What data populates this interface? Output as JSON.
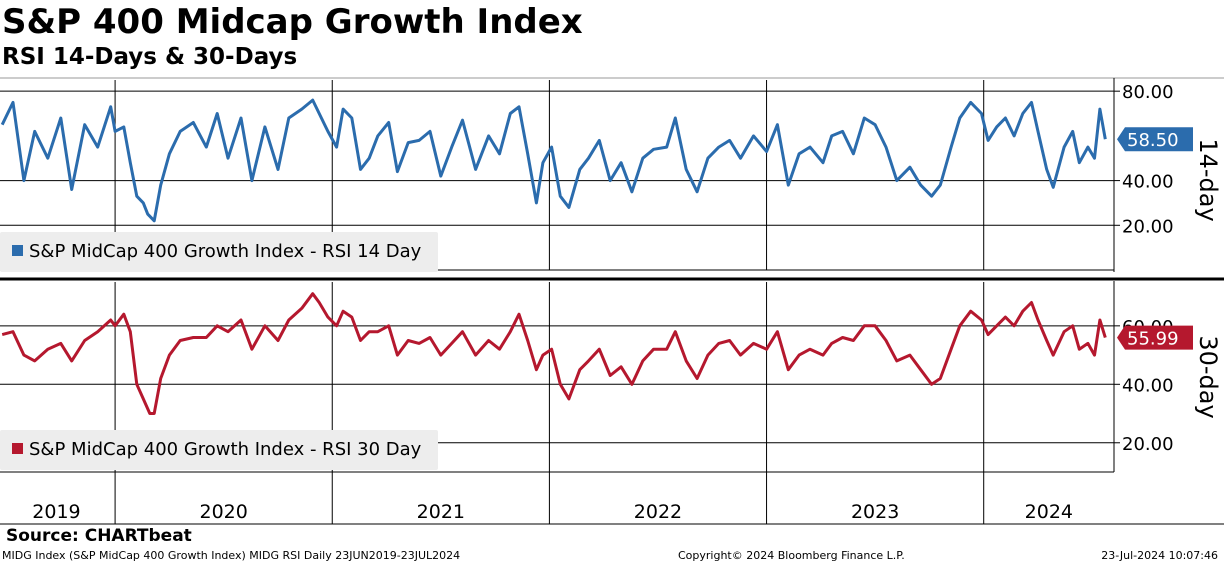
{
  "header": {
    "title": "S&P 400 Midcap Growth Index",
    "subtitle": "RSI 14-Days & 30-Days"
  },
  "footer": {
    "source": "Source: CHARTbeat",
    "left": "MIDG Index (S&P MidCap 400 Growth Index) MIDG RSI  Daily 23JUN2019-23JUL2024",
    "middle": "Copyright© 2024 Bloomberg Finance L.P.",
    "right": "23-Jul-2024 10:07:46"
  },
  "colors": {
    "rsi14": "#2b6cad",
    "rsi30": "#b5182e",
    "grid": "#000000"
  },
  "chart_data": [
    {
      "type": "line",
      "panel": "top",
      "axis_title": "14-day",
      "series": [
        {
          "name": "S&P MidCap 400 Growth Index - RSI 14 Day",
          "last_value": 58.5,
          "last_label": "58.50",
          "points": [
            [
              2019.48,
              65
            ],
            [
              2019.53,
              75
            ],
            [
              2019.58,
              40
            ],
            [
              2019.63,
              62
            ],
            [
              2019.69,
              50
            ],
            [
              2019.75,
              68
            ],
            [
              2019.8,
              36
            ],
            [
              2019.86,
              65
            ],
            [
              2019.92,
              55
            ],
            [
              2019.98,
              73
            ],
            [
              2020.0,
              62
            ],
            [
              2020.04,
              64
            ],
            [
              2020.07,
              48
            ],
            [
              2020.1,
              33
            ],
            [
              2020.13,
              30
            ],
            [
              2020.15,
              25
            ],
            [
              2020.18,
              22
            ],
            [
              2020.21,
              38
            ],
            [
              2020.25,
              52
            ],
            [
              2020.3,
              62
            ],
            [
              2020.36,
              66
            ],
            [
              2020.42,
              55
            ],
            [
              2020.47,
              70
            ],
            [
              2020.52,
              50
            ],
            [
              2020.58,
              68
            ],
            [
              2020.63,
              40
            ],
            [
              2020.69,
              64
            ],
            [
              2020.75,
              45
            ],
            [
              2020.8,
              68
            ],
            [
              2020.86,
              72
            ],
            [
              2020.91,
              76
            ],
            [
              2020.94,
              70
            ],
            [
              2020.98,
              62
            ],
            [
              2021.02,
              55
            ],
            [
              2021.05,
              72
            ],
            [
              2021.09,
              68
            ],
            [
              2021.13,
              45
            ],
            [
              2021.17,
              50
            ],
            [
              2021.21,
              60
            ],
            [
              2021.26,
              66
            ],
            [
              2021.3,
              44
            ],
            [
              2021.35,
              57
            ],
            [
              2021.4,
              58
            ],
            [
              2021.45,
              62
            ],
            [
              2021.5,
              42
            ],
            [
              2021.55,
              55
            ],
            [
              2021.6,
              67
            ],
            [
              2021.66,
              45
            ],
            [
              2021.72,
              60
            ],
            [
              2021.77,
              52
            ],
            [
              2021.82,
              70
            ],
            [
              2021.86,
              73
            ],
            [
              2021.9,
              52
            ],
            [
              2021.94,
              30
            ],
            [
              2021.97,
              48
            ],
            [
              2022.01,
              55
            ],
            [
              2022.05,
              33
            ],
            [
              2022.09,
              28
            ],
            [
              2022.14,
              45
            ],
            [
              2022.18,
              50
            ],
            [
              2022.23,
              58
            ],
            [
              2022.28,
              40
            ],
            [
              2022.33,
              48
            ],
            [
              2022.38,
              35
            ],
            [
              2022.43,
              50
            ],
            [
              2022.48,
              54
            ],
            [
              2022.54,
              55
            ],
            [
              2022.58,
              68
            ],
            [
              2022.63,
              45
            ],
            [
              2022.68,
              35
            ],
            [
              2022.73,
              50
            ],
            [
              2022.78,
              55
            ],
            [
              2022.83,
              58
            ],
            [
              2022.88,
              50
            ],
            [
              2022.94,
              60
            ],
            [
              2023.0,
              53
            ],
            [
              2023.05,
              65
            ],
            [
              2023.1,
              38
            ],
            [
              2023.15,
              52
            ],
            [
              2023.2,
              55
            ],
            [
              2023.26,
              48
            ],
            [
              2023.3,
              60
            ],
            [
              2023.35,
              62
            ],
            [
              2023.4,
              52
            ],
            [
              2023.45,
              68
            ],
            [
              2023.5,
              65
            ],
            [
              2023.55,
              55
            ],
            [
              2023.6,
              40
            ],
            [
              2023.66,
              46
            ],
            [
              2023.71,
              38
            ],
            [
              2023.76,
              33
            ],
            [
              2023.8,
              38
            ],
            [
              2023.85,
              55
            ],
            [
              2023.89,
              68
            ],
            [
              2023.94,
              75
            ],
            [
              2023.99,
              70
            ],
            [
              2024.02,
              58
            ],
            [
              2024.06,
              64
            ],
            [
              2024.1,
              68
            ],
            [
              2024.14,
              60
            ],
            [
              2024.18,
              70
            ],
            [
              2024.22,
              75
            ],
            [
              2024.25,
              62
            ],
            [
              2024.29,
              45
            ],
            [
              2024.32,
              37
            ],
            [
              2024.37,
              55
            ],
            [
              2024.41,
              62
            ],
            [
              2024.44,
              48
            ],
            [
              2024.48,
              55
            ],
            [
              2024.51,
              50
            ],
            [
              2024.535,
              72
            ],
            [
              2024.56,
              58.5
            ]
          ]
        }
      ],
      "y_ticks": [
        {
          "value": 20,
          "label": "20.00"
        },
        {
          "value": 40,
          "label": "40.00"
        },
        {
          "value": 80,
          "label": "80.00"
        }
      ],
      "ylim": [
        0,
        85
      ],
      "legend": "top-left"
    },
    {
      "type": "line",
      "panel": "bottom",
      "axis_title": "30-day",
      "series": [
        {
          "name": "S&P MidCap 400 Growth Index - RSI 30 Day",
          "last_value": 55.99,
          "last_label": "55.99",
          "points": [
            [
              2019.48,
              57
            ],
            [
              2019.53,
              58
            ],
            [
              2019.58,
              50
            ],
            [
              2019.63,
              48
            ],
            [
              2019.69,
              52
            ],
            [
              2019.75,
              54
            ],
            [
              2019.8,
              48
            ],
            [
              2019.86,
              55
            ],
            [
              2019.92,
              58
            ],
            [
              2019.98,
              62
            ],
            [
              2020.0,
              60
            ],
            [
              2020.04,
              64
            ],
            [
              2020.07,
              58
            ],
            [
              2020.1,
              40
            ],
            [
              2020.13,
              35
            ],
            [
              2020.16,
              30
            ],
            [
              2020.18,
              30
            ],
            [
              2020.21,
              42
            ],
            [
              2020.25,
              50
            ],
            [
              2020.3,
              55
            ],
            [
              2020.36,
              56
            ],
            [
              2020.42,
              56
            ],
            [
              2020.47,
              60
            ],
            [
              2020.52,
              58
            ],
            [
              2020.58,
              62
            ],
            [
              2020.63,
              52
            ],
            [
              2020.69,
              60
            ],
            [
              2020.75,
              55
            ],
            [
              2020.8,
              62
            ],
            [
              2020.86,
              66
            ],
            [
              2020.91,
              71
            ],
            [
              2020.94,
              68
            ],
            [
              2020.98,
              63
            ],
            [
              2021.02,
              60
            ],
            [
              2021.05,
              65
            ],
            [
              2021.09,
              63
            ],
            [
              2021.13,
              55
            ],
            [
              2021.17,
              58
            ],
            [
              2021.21,
              58
            ],
            [
              2021.26,
              60
            ],
            [
              2021.3,
              50
            ],
            [
              2021.35,
              55
            ],
            [
              2021.4,
              54
            ],
            [
              2021.45,
              56
            ],
            [
              2021.5,
              50
            ],
            [
              2021.55,
              54
            ],
            [
              2021.6,
              58
            ],
            [
              2021.66,
              50
            ],
            [
              2021.72,
              55
            ],
            [
              2021.77,
              52
            ],
            [
              2021.82,
              58
            ],
            [
              2021.86,
              64
            ],
            [
              2021.9,
              55
            ],
            [
              2021.94,
              45
            ],
            [
              2021.97,
              50
            ],
            [
              2022.01,
              52
            ],
            [
              2022.05,
              40
            ],
            [
              2022.09,
              35
            ],
            [
              2022.14,
              45
            ],
            [
              2022.18,
              48
            ],
            [
              2022.23,
              52
            ],
            [
              2022.28,
              43
            ],
            [
              2022.33,
              46
            ],
            [
              2022.38,
              40
            ],
            [
              2022.43,
              48
            ],
            [
              2022.48,
              52
            ],
            [
              2022.54,
              52
            ],
            [
              2022.58,
              58
            ],
            [
              2022.63,
              48
            ],
            [
              2022.68,
              42
            ],
            [
              2022.73,
              50
            ],
            [
              2022.78,
              54
            ],
            [
              2022.83,
              55
            ],
            [
              2022.88,
              50
            ],
            [
              2022.94,
              54
            ],
            [
              2023.0,
              52
            ],
            [
              2023.05,
              58
            ],
            [
              2023.1,
              45
            ],
            [
              2023.15,
              50
            ],
            [
              2023.2,
              52
            ],
            [
              2023.26,
              50
            ],
            [
              2023.3,
              54
            ],
            [
              2023.35,
              56
            ],
            [
              2023.4,
              55
            ],
            [
              2023.45,
              60
            ],
            [
              2023.5,
              60
            ],
            [
              2023.55,
              55
            ],
            [
              2023.6,
              48
            ],
            [
              2023.66,
              50
            ],
            [
              2023.71,
              45
            ],
            [
              2023.76,
              40
            ],
            [
              2023.8,
              42
            ],
            [
              2023.85,
              52
            ],
            [
              2023.89,
              60
            ],
            [
              2023.94,
              65
            ],
            [
              2023.99,
              62
            ],
            [
              2024.02,
              57
            ],
            [
              2024.06,
              60
            ],
            [
              2024.1,
              63
            ],
            [
              2024.14,
              60
            ],
            [
              2024.18,
              65
            ],
            [
              2024.22,
              68
            ],
            [
              2024.25,
              62
            ],
            [
              2024.29,
              55
            ],
            [
              2024.32,
              50
            ],
            [
              2024.37,
              58
            ],
            [
              2024.41,
              60
            ],
            [
              2024.44,
              52
            ],
            [
              2024.48,
              54
            ],
            [
              2024.51,
              50
            ],
            [
              2024.535,
              62
            ],
            [
              2024.56,
              55.99
            ]
          ]
        }
      ],
      "y_ticks": [
        {
          "value": 20,
          "label": "20.00"
        },
        {
          "value": 40,
          "label": "40.00"
        },
        {
          "value": 60,
          "label": "60.00"
        }
      ],
      "ylim": [
        10,
        75
      ],
      "legend": "bottom-left"
    }
  ],
  "x_axis": {
    "range": [
      2019.47,
      2024.6
    ],
    "year_labels": [
      "2019",
      "2020",
      "2021",
      "2022",
      "2023",
      "2024"
    ],
    "year_label_positions": [
      2019.73,
      2020.5,
      2021.5,
      2022.5,
      2023.5,
      2024.3
    ],
    "year_boundaries": [
      2020.0,
      2021.0,
      2022.0,
      2023.0,
      2024.0
    ]
  }
}
